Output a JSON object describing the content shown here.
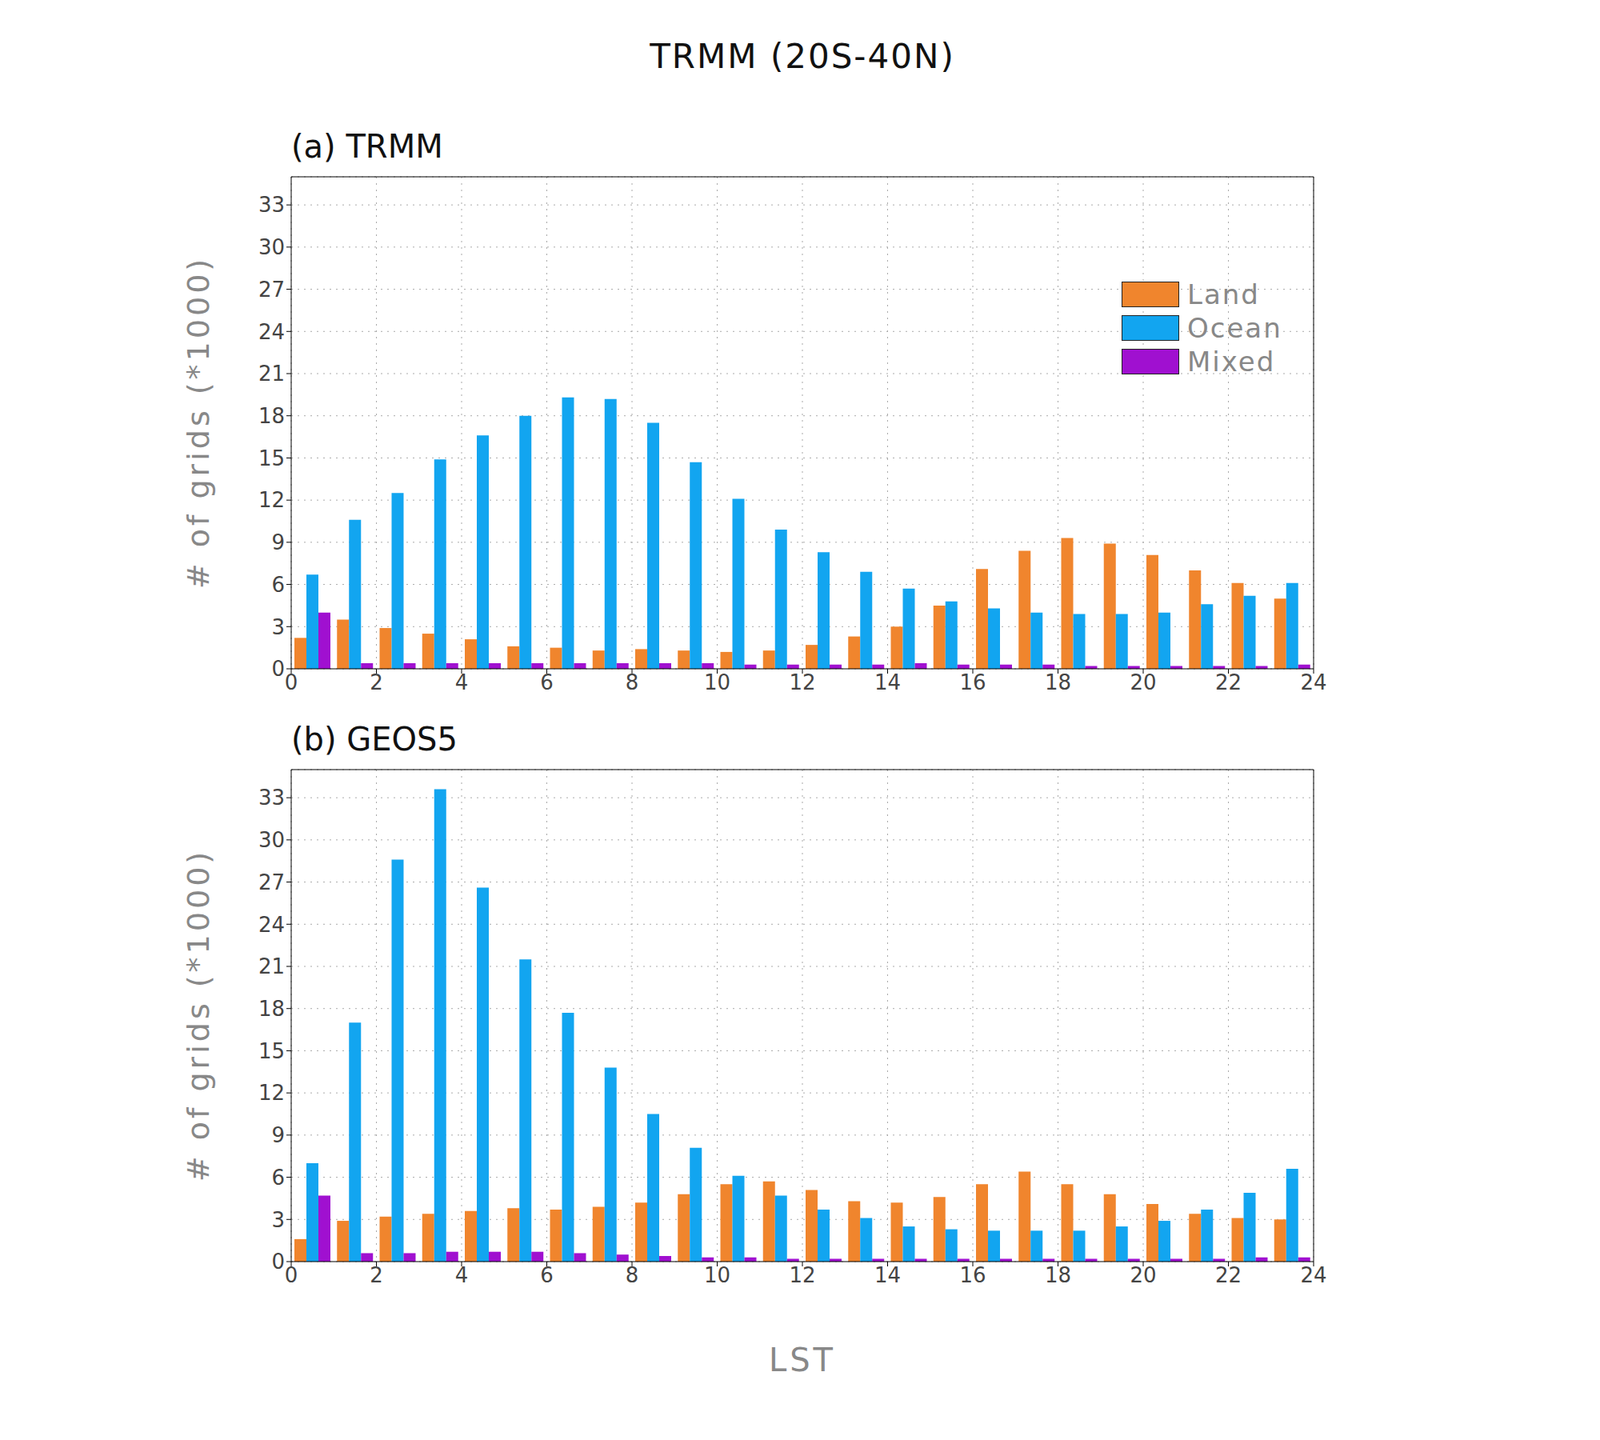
{
  "title": "TRMM (20S-40N)",
  "chart_data": [
    {
      "type": "bar",
      "title": "(a) TRMM",
      "y_label": "# of grids (*1000)",
      "x": [
        0.5,
        1.5,
        2.5,
        3.5,
        4.5,
        5.5,
        6.5,
        7.5,
        8.5,
        9.5,
        10.5,
        11.5,
        12.5,
        13.5,
        14.5,
        15.5,
        16.5,
        17.5,
        18.5,
        19.5,
        20.5,
        21.5,
        22.5,
        23.5
      ],
      "xlim": [
        0,
        24
      ],
      "xticks": [
        0,
        2,
        4,
        6,
        8,
        10,
        12,
        14,
        16,
        18,
        20,
        22,
        24
      ],
      "ylim": [
        0,
        35
      ],
      "yticks": [
        0,
        3,
        6,
        9,
        12,
        15,
        18,
        21,
        24,
        27,
        30,
        33
      ],
      "grid": true,
      "legend": "upper right",
      "series": [
        {
          "name": "Land",
          "color": "#f0852d",
          "values": [
            2.2,
            3.5,
            2.9,
            2.5,
            2.1,
            1.6,
            1.5,
            1.3,
            1.4,
            1.3,
            1.2,
            1.3,
            1.7,
            2.3,
            3.0,
            4.5,
            7.1,
            8.4,
            9.3,
            8.9,
            8.1,
            7.0,
            6.1,
            5.0
          ]
        },
        {
          "name": "Ocean",
          "color": "#12a5f0",
          "values": [
            6.7,
            10.6,
            12.5,
            14.9,
            16.6,
            18.0,
            19.3,
            19.2,
            17.5,
            14.7,
            12.1,
            9.9,
            8.3,
            6.9,
            5.7,
            4.8,
            4.3,
            4.0,
            3.9,
            3.9,
            4.0,
            4.6,
            5.2,
            6.1
          ]
        },
        {
          "name": "Mixed",
          "color": "#a010d0",
          "values": [
            4.0,
            0.4,
            0.4,
            0.4,
            0.4,
            0.4,
            0.4,
            0.4,
            0.4,
            0.4,
            0.3,
            0.3,
            0.3,
            0.3,
            0.4,
            0.3,
            0.3,
            0.3,
            0.2,
            0.2,
            0.2,
            0.2,
            0.2,
            0.3
          ]
        }
      ]
    },
    {
      "type": "bar",
      "title": "(b) GEOS5",
      "y_label": "# of grids (*1000)",
      "x_label": "LST",
      "x": [
        0.5,
        1.5,
        2.5,
        3.5,
        4.5,
        5.5,
        6.5,
        7.5,
        8.5,
        9.5,
        10.5,
        11.5,
        12.5,
        13.5,
        14.5,
        15.5,
        16.5,
        17.5,
        18.5,
        19.5,
        20.5,
        21.5,
        22.5,
        23.5
      ],
      "xlim": [
        0,
        24
      ],
      "xticks": [
        0,
        2,
        4,
        6,
        8,
        10,
        12,
        14,
        16,
        18,
        20,
        22,
        24
      ],
      "ylim": [
        0,
        35
      ],
      "yticks": [
        0,
        3,
        6,
        9,
        12,
        15,
        18,
        21,
        24,
        27,
        30,
        33
      ],
      "grid": true,
      "series": [
        {
          "name": "Land",
          "color": "#f0852d",
          "values": [
            1.6,
            2.9,
            3.2,
            3.4,
            3.6,
            3.8,
            3.7,
            3.9,
            4.2,
            4.8,
            5.5,
            5.7,
            5.1,
            4.3,
            4.2,
            4.6,
            5.5,
            6.4,
            5.5,
            4.8,
            4.1,
            3.4,
            3.1,
            3.0
          ]
        },
        {
          "name": "Ocean",
          "color": "#12a5f0",
          "values": [
            7.0,
            17.0,
            28.6,
            33.6,
            26.6,
            21.5,
            17.7,
            13.8,
            10.5,
            8.1,
            6.1,
            4.7,
            3.7,
            3.1,
            2.5,
            2.3,
            2.2,
            2.2,
            2.2,
            2.5,
            2.9,
            3.7,
            4.9,
            6.6
          ]
        },
        {
          "name": "Mixed",
          "color": "#a010d0",
          "values": [
            4.7,
            0.6,
            0.6,
            0.7,
            0.7,
            0.7,
            0.6,
            0.5,
            0.4,
            0.3,
            0.3,
            0.2,
            0.2,
            0.2,
            0.2,
            0.2,
            0.2,
            0.2,
            0.2,
            0.2,
            0.2,
            0.2,
            0.3,
            0.3
          ]
        }
      ]
    }
  ]
}
